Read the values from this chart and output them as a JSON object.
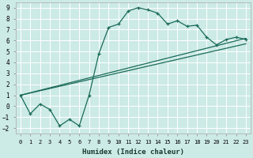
{
  "xlabel": "Humidex (Indice chaleur)",
  "xlim": [
    -0.5,
    23.5
  ],
  "ylim": [
    -2.5,
    9.5
  ],
  "xticks": [
    0,
    1,
    2,
    3,
    4,
    5,
    6,
    7,
    8,
    9,
    10,
    11,
    12,
    13,
    14,
    15,
    16,
    17,
    18,
    19,
    20,
    21,
    22,
    23
  ],
  "yticks": [
    -2,
    -1,
    0,
    1,
    2,
    3,
    4,
    5,
    6,
    7,
    8,
    9
  ],
  "bg_color": "#cceae6",
  "line_color": "#1a6b5a",
  "grid_color": "#ffffff",
  "curve_x": [
    0,
    1,
    2,
    3,
    4,
    5,
    6,
    7,
    8,
    9,
    10,
    11,
    12,
    13,
    14,
    15,
    16,
    17,
    18,
    19,
    20,
    21,
    22,
    23
  ],
  "curve_y": [
    1.0,
    -0.7,
    0.2,
    -0.3,
    -1.8,
    -1.2,
    -1.8,
    1.0,
    4.8,
    7.2,
    7.5,
    8.7,
    9.0,
    8.8,
    8.5,
    7.5,
    7.8,
    7.3,
    7.4,
    6.3,
    5.6,
    6.1,
    6.3,
    6.1
  ],
  "line2_x": [
    0,
    23
  ],
  "line2_y": [
    1.0,
    6.2
  ],
  "line3_x": [
    0,
    23
  ],
  "line3_y": [
    1.0,
    5.7
  ]
}
